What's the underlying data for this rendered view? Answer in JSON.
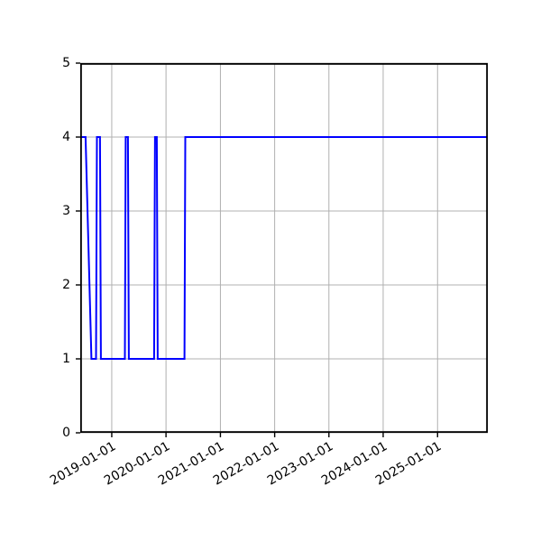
{
  "chart_data": {
    "type": "line",
    "title": "",
    "xlabel": "",
    "ylabel": "",
    "grid": true,
    "legend_position": "none",
    "line_color": "#0000ff",
    "grid_color": "#b0b0b0",
    "axis_color": "#000000",
    "background_color": "#ffffff",
    "xlim": [
      "2018-06-03",
      "2025-12-05"
    ],
    "ylim": [
      0,
      5
    ],
    "x_ticks": [
      "2019-01-01",
      "2020-01-01",
      "2021-01-01",
      "2022-01-01",
      "2023-01-01",
      "2024-01-01",
      "2025-01-01"
    ],
    "x_tick_labels": [
      "2019-01-01",
      "2020-01-01",
      "2021-01-01",
      "2022-01-01",
      "2023-01-01",
      "2024-01-01",
      "2025-01-01"
    ],
    "y_ticks": [
      0,
      1,
      2,
      3,
      4,
      5
    ],
    "y_tick_labels": [
      "0",
      "1",
      "2",
      "3",
      "4",
      "5"
    ],
    "series": [
      {
        "name": "value",
        "points": [
          [
            "2018-06-03",
            4
          ],
          [
            "2018-07-09",
            4
          ],
          [
            "2018-08-17",
            1
          ],
          [
            "2018-09-17",
            1
          ],
          [
            "2018-09-23",
            4
          ],
          [
            "2018-10-14",
            4
          ],
          [
            "2018-10-20",
            1
          ],
          [
            "2019-03-30",
            1
          ],
          [
            "2019-04-05",
            4
          ],
          [
            "2019-04-20",
            4
          ],
          [
            "2019-04-26",
            1
          ],
          [
            "2019-10-13",
            1
          ],
          [
            "2019-10-19",
            4
          ],
          [
            "2019-10-31",
            4
          ],
          [
            "2019-11-06",
            1
          ],
          [
            "2020-05-04",
            1
          ],
          [
            "2020-05-10",
            4
          ],
          [
            "2025-12-05",
            4
          ]
        ]
      }
    ]
  }
}
